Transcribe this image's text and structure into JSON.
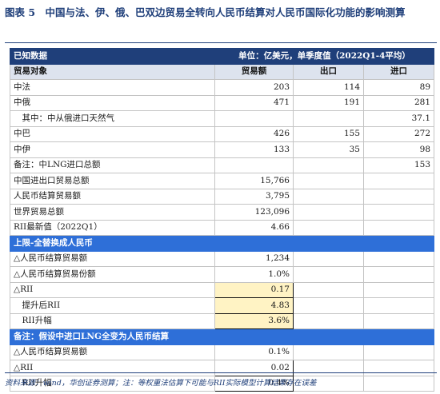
{
  "title": "图表 5　中国与法、伊、俄、巴双边贸易全转向人民币结算对人民币国际化功能的影响测算",
  "header": {
    "left": "已知数据",
    "right": "单位：亿美元，单季度值（2022Q1-4平均）"
  },
  "columns": [
    "贸易对象",
    "贸易额",
    "出口",
    "进口"
  ],
  "rows": [
    {
      "label": "中法",
      "trade": "203",
      "export": "114",
      "import": "89"
    },
    {
      "label": "中俄",
      "trade": "471",
      "export": "191",
      "import": "281"
    },
    {
      "label": "　其中：中从俄进口天然气",
      "trade": "",
      "export": "",
      "import": "37.1"
    },
    {
      "label": "中巴",
      "trade": "426",
      "export": "155",
      "import": "272"
    },
    {
      "label": "中伊",
      "trade": "133",
      "export": "35",
      "import": "98"
    },
    {
      "label": "备注：中LNG进口总额",
      "trade": "",
      "export": "",
      "import": "153"
    },
    {
      "label": "中国进出口贸易总额",
      "trade": "15,766",
      "export": "",
      "import": ""
    },
    {
      "label": "人民币结算贸易额",
      "trade": "3,795",
      "export": "",
      "import": ""
    },
    {
      "label": "世界贸易总额",
      "trade": "123,096",
      "export": "",
      "import": ""
    },
    {
      "label": "RII最新值（2022Q1）",
      "trade": "4.66",
      "export": "",
      "import": ""
    }
  ],
  "section_upper": {
    "title": "上限-全替换成人民币",
    "rows": [
      {
        "label": "△人民币结算贸易额",
        "value": "1,234"
      },
      {
        "label": "△人民币结算贸易份额",
        "value": "1.0%"
      },
      {
        "label": "△RII",
        "value": "0.17"
      },
      {
        "label": "　提升后RII",
        "value": "4.83"
      },
      {
        "label": "　RII升幅",
        "value": "3.6%"
      }
    ]
  },
  "section_note": {
    "title": "备注：假设中进口LNG全变为人民币结算",
    "rows": [
      {
        "label": "△人民币结算贸易额",
        "value": "0.1%"
      },
      {
        "label": "△RII",
        "value": "0.02"
      },
      {
        "label": "　RII升幅",
        "value": "0.4%"
      }
    ]
  },
  "footnote": "资料来源：wind，华创证券测算；注：等权重法估算下可能与RII实际模型计算结果存在误差"
}
